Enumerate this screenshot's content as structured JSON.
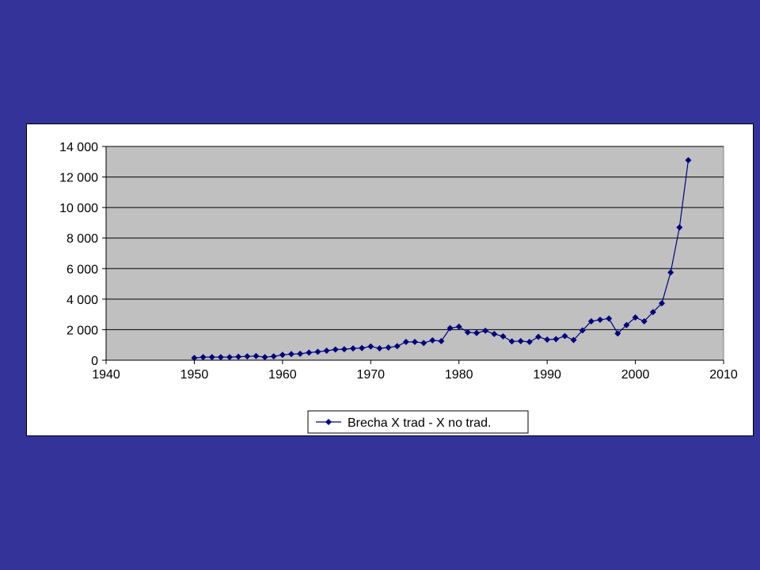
{
  "chart_data": {
    "type": "line",
    "title": "",
    "xlabel": "",
    "ylabel": "",
    "xlim": [
      1940,
      2010
    ],
    "ylim": [
      0,
      14000
    ],
    "xticks": [
      1940,
      1950,
      1960,
      1970,
      1980,
      1990,
      2000,
      2010
    ],
    "yticks": [
      0,
      2000,
      4000,
      6000,
      8000,
      10000,
      12000,
      14000
    ],
    "xtick_labels": [
      "1940",
      "1950",
      "1960",
      "1970",
      "1980",
      "1990",
      "2000",
      "2010"
    ],
    "ytick_labels": [
      "0",
      "2 000",
      "4 000",
      "6 000",
      "8 000",
      "10 000",
      "12 000",
      "14 000"
    ],
    "grid": "horizontal",
    "legend_position": "bottom",
    "series": [
      {
        "name": "Brecha X trad - X no trad.",
        "color": "#000080",
        "marker": "diamond",
        "x": [
          1950,
          1951,
          1952,
          1953,
          1954,
          1955,
          1956,
          1957,
          1958,
          1959,
          1960,
          1961,
          1962,
          1963,
          1964,
          1965,
          1966,
          1967,
          1968,
          1969,
          1970,
          1971,
          1972,
          1973,
          1974,
          1975,
          1976,
          1977,
          1978,
          1979,
          1980,
          1981,
          1982,
          1983,
          1984,
          1985,
          1986,
          1987,
          1988,
          1989,
          1990,
          1991,
          1992,
          1993,
          1994,
          1995,
          1996,
          1997,
          1998,
          1999,
          2000,
          2001,
          2002,
          2003,
          2004,
          2005,
          2006
        ],
        "y": [
          150,
          200,
          200,
          200,
          200,
          230,
          250,
          270,
          200,
          250,
          350,
          400,
          420,
          500,
          550,
          620,
          700,
          720,
          770,
          800,
          900,
          780,
          830,
          920,
          1200,
          1200,
          1130,
          1300,
          1250,
          2100,
          2200,
          1830,
          1780,
          1930,
          1720,
          1560,
          1230,
          1250,
          1200,
          1530,
          1350,
          1380,
          1580,
          1320,
          1950,
          2550,
          2650,
          2730,
          1750,
          2300,
          2800,
          2550,
          3150,
          3730,
          5750,
          8700,
          13100
        ]
      }
    ],
    "plot_background": "#c0c0c0",
    "gridline_color": "#000000"
  }
}
